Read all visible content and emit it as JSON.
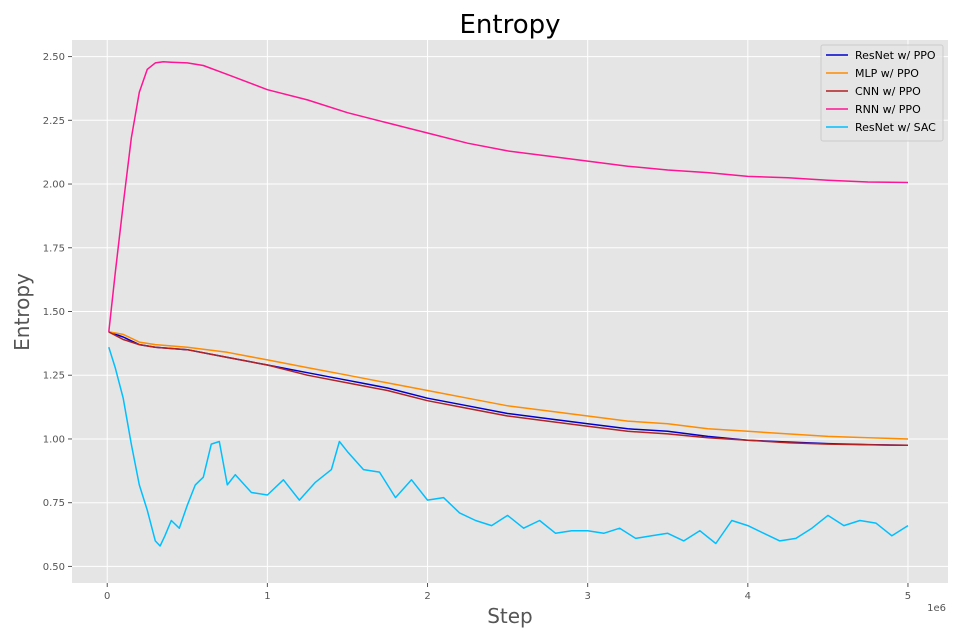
{
  "chart_data": {
    "type": "line",
    "title": "Entropy",
    "xlabel": "Step",
    "ylabel": "Entropy",
    "x_offset_label": "1e6",
    "xlim": [
      -0.22,
      5.25
    ],
    "ylim": [
      0.435,
      2.565
    ],
    "xticks": [
      0,
      1,
      2,
      3,
      4,
      5
    ],
    "xtick_labels": [
      "0",
      "1",
      "2",
      "3",
      "4",
      "5"
    ],
    "yticks": [
      0.5,
      0.75,
      1.0,
      1.25,
      1.5,
      1.75,
      2.0,
      2.25,
      2.5
    ],
    "ytick_labels": [
      "0.50",
      "0.75",
      "1.00",
      "1.25",
      "1.50",
      "1.75",
      "2.00",
      "2.25",
      "2.50"
    ],
    "grid": true,
    "legend_position": "top-right",
    "series": [
      {
        "name": "ResNet w/ PPO",
        "color": "#0000cd",
        "x": [
          0.01,
          0.1,
          0.2,
          0.3,
          0.5,
          0.75,
          1.0,
          1.25,
          1.5,
          1.75,
          2.0,
          2.25,
          2.5,
          2.75,
          3.0,
          3.25,
          3.5,
          3.75,
          4.0,
          4.25,
          4.5,
          4.75,
          5.0
        ],
        "y": [
          1.42,
          1.4,
          1.37,
          1.36,
          1.35,
          1.32,
          1.29,
          1.26,
          1.23,
          1.2,
          1.16,
          1.13,
          1.1,
          1.08,
          1.06,
          1.04,
          1.03,
          1.01,
          0.995,
          0.988,
          0.982,
          0.978,
          0.975
        ]
      },
      {
        "name": "MLP w/ PPO",
        "color": "#ff8c00",
        "x": [
          0.01,
          0.1,
          0.2,
          0.3,
          0.5,
          0.75,
          1.0,
          1.25,
          1.5,
          1.75,
          2.0,
          2.25,
          2.5,
          2.75,
          3.0,
          3.25,
          3.5,
          3.75,
          4.0,
          4.25,
          4.5,
          4.75,
          5.0
        ],
        "y": [
          1.42,
          1.41,
          1.38,
          1.37,
          1.36,
          1.34,
          1.31,
          1.28,
          1.25,
          1.22,
          1.19,
          1.16,
          1.13,
          1.11,
          1.09,
          1.07,
          1.06,
          1.04,
          1.03,
          1.02,
          1.01,
          1.005,
          1.0
        ]
      },
      {
        "name": "CNN w/ PPO",
        "color": "#b22222",
        "x": [
          0.01,
          0.1,
          0.2,
          0.3,
          0.5,
          0.75,
          1.0,
          1.25,
          1.5,
          1.75,
          2.0,
          2.25,
          2.5,
          2.75,
          3.0,
          3.25,
          3.5,
          3.75,
          4.0,
          4.25,
          4.5,
          4.75,
          5.0
        ],
        "y": [
          1.42,
          1.39,
          1.37,
          1.36,
          1.35,
          1.32,
          1.29,
          1.25,
          1.22,
          1.19,
          1.15,
          1.12,
          1.09,
          1.07,
          1.05,
          1.03,
          1.02,
          1.005,
          0.995,
          0.985,
          0.98,
          0.977,
          0.975
        ]
      },
      {
        "name": "RNN w/ PPO",
        "color": "#ff1493",
        "x": [
          0.01,
          0.05,
          0.1,
          0.15,
          0.2,
          0.25,
          0.3,
          0.35,
          0.4,
          0.5,
          0.6,
          0.75,
          1.0,
          1.25,
          1.5,
          1.75,
          2.0,
          2.25,
          2.5,
          2.75,
          3.0,
          3.25,
          3.5,
          3.75,
          4.0,
          4.25,
          4.5,
          4.75,
          5.0
        ],
        "y": [
          1.42,
          1.65,
          1.92,
          2.18,
          2.36,
          2.45,
          2.475,
          2.48,
          2.478,
          2.475,
          2.465,
          2.43,
          2.37,
          2.33,
          2.28,
          2.24,
          2.2,
          2.16,
          2.13,
          2.11,
          2.09,
          2.07,
          2.055,
          2.045,
          2.03,
          2.025,
          2.015,
          2.008,
          2.006
        ]
      },
      {
        "name": "ResNet w/ SAC",
        "color": "#00bfff",
        "x": [
          0.01,
          0.05,
          0.1,
          0.15,
          0.2,
          0.25,
          0.3,
          0.33,
          0.36,
          0.4,
          0.45,
          0.5,
          0.55,
          0.6,
          0.65,
          0.7,
          0.75,
          0.8,
          0.9,
          1.0,
          1.1,
          1.2,
          1.3,
          1.4,
          1.45,
          1.5,
          1.6,
          1.7,
          1.8,
          1.9,
          2.0,
          2.1,
          2.2,
          2.3,
          2.4,
          2.5,
          2.6,
          2.7,
          2.8,
          2.9,
          3.0,
          3.1,
          3.2,
          3.3,
          3.4,
          3.5,
          3.6,
          3.7,
          3.8,
          3.9,
          4.0,
          4.1,
          4.2,
          4.3,
          4.4,
          4.5,
          4.6,
          4.7,
          4.8,
          4.9,
          5.0
        ],
        "y": [
          1.36,
          1.28,
          1.16,
          0.98,
          0.82,
          0.72,
          0.6,
          0.58,
          0.62,
          0.68,
          0.65,
          0.74,
          0.82,
          0.85,
          0.98,
          0.99,
          0.82,
          0.86,
          0.79,
          0.78,
          0.84,
          0.76,
          0.83,
          0.88,
          0.99,
          0.95,
          0.88,
          0.87,
          0.77,
          0.84,
          0.76,
          0.77,
          0.71,
          0.68,
          0.66,
          0.7,
          0.65,
          0.68,
          0.63,
          0.64,
          0.64,
          0.63,
          0.65,
          0.61,
          0.62,
          0.63,
          0.6,
          0.64,
          0.59,
          0.68,
          0.66,
          0.63,
          0.6,
          0.61,
          0.65,
          0.7,
          0.66,
          0.68,
          0.67,
          0.62,
          0.66
        ]
      }
    ]
  }
}
